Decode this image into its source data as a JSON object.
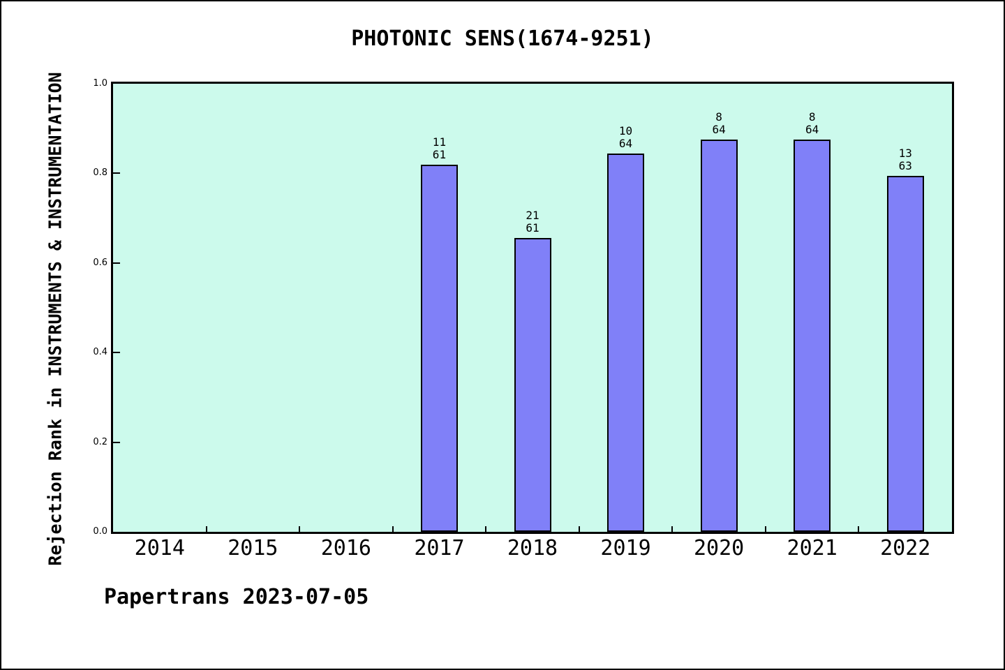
{
  "page": {
    "footer": "Papertrans 2023-07-05"
  },
  "chart_data": {
    "type": "bar",
    "title": "PHOTONIC SENS(1674-9251)",
    "ylabel": "Rejection Rank in INSTRUMENTS & INSTRUMENTATION",
    "xlabel": "",
    "categories": [
      "2014",
      "2015",
      "2016",
      "2017",
      "2018",
      "2019",
      "2020",
      "2021",
      "2022"
    ],
    "ylim": [
      0.0,
      1.0
    ],
    "yticks": [
      "0.0",
      "0.2",
      "0.4",
      "0.6",
      "0.8",
      "1.0"
    ],
    "grid": false,
    "legend_position": "none",
    "colors": {
      "plot_background": "#ccfaec",
      "bar_fill": "#8080f8",
      "bar_edge": "#000000",
      "text": "#000000"
    },
    "series": [
      {
        "name": "rejection_rank",
        "points": [
          {
            "category": "2014",
            "rank": null,
            "total": null,
            "value": null,
            "label_lines": []
          },
          {
            "category": "2015",
            "rank": null,
            "total": null,
            "value": null,
            "label_lines": []
          },
          {
            "category": "2016",
            "rank": null,
            "total": null,
            "value": null,
            "label_lines": []
          },
          {
            "category": "2017",
            "rank": 11,
            "total": 61,
            "value": 0.8197,
            "label_lines": [
              "11",
              "61"
            ]
          },
          {
            "category": "2018",
            "rank": 21,
            "total": 61,
            "value": 0.6557,
            "label_lines": [
              "21",
              "61"
            ]
          },
          {
            "category": "2019",
            "rank": 10,
            "total": 64,
            "value": 0.8438,
            "label_lines": [
              "10",
              "64"
            ]
          },
          {
            "category": "2020",
            "rank": 8,
            "total": 64,
            "value": 0.875,
            "label_lines": [
              "8",
              "64"
            ]
          },
          {
            "category": "2021",
            "rank": 8,
            "total": 64,
            "value": 0.875,
            "label_lines": [
              "8",
              "64"
            ]
          },
          {
            "category": "2022",
            "rank": 13,
            "total": 63,
            "value": 0.7937,
            "label_lines": [
              "13",
              "63"
            ]
          }
        ]
      }
    ]
  }
}
